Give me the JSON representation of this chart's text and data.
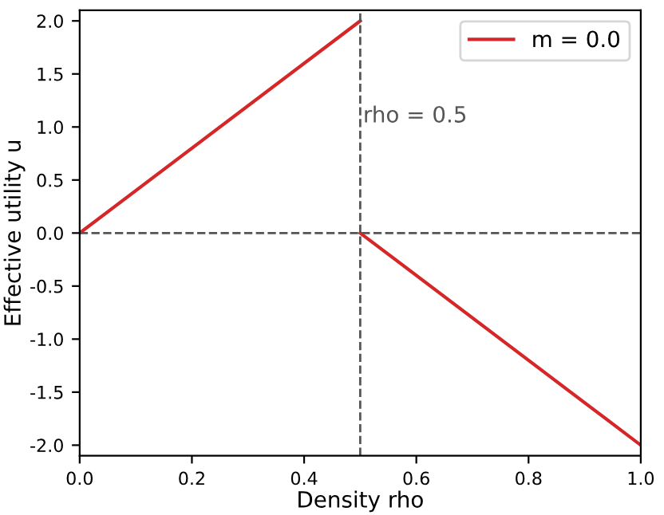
{
  "chart_data": {
    "type": "line",
    "xlabel": "Density rho",
    "ylabel": "Effective utility u",
    "series": [
      {
        "name": "m = 0.0",
        "color": "#d62728",
        "x": [
          0,
          0.5
        ],
        "values": [
          0,
          2
        ]
      },
      {
        "color": "#d62728",
        "x": [
          0.5,
          1
        ],
        "values": [
          0,
          -2
        ]
      }
    ],
    "xlim": [
      0,
      1
    ],
    "ylim": [
      -2.1,
      2.1
    ],
    "xticks": [
      {
        "value": 0,
        "label": "0.0"
      },
      0.2,
      0.4,
      0.6,
      0.8,
      {
        "value": 1,
        "label": "1.0"
      }
    ],
    "yticks": [
      {
        "value": -2,
        "label": "-2.0"
      },
      -1.5,
      {
        "value": -1,
        "label": "-1.0"
      },
      -0.5,
      {
        "value": 0,
        "label": "0.0"
      },
      0.5,
      {
        "value": 1,
        "label": "1.0"
      },
      1.5,
      {
        "value": 2,
        "label": "2.0"
      }
    ],
    "ref_lines": [
      {
        "axis": "y",
        "value": 0,
        "color": "#555555",
        "line_style": "dashed"
      },
      {
        "axis": "x",
        "value": 0.5,
        "label": "rho = 0.5",
        "color": "#555555",
        "line_style": "dashed"
      }
    ],
    "legend": "top right",
    "grid": false,
    "marker": "none",
    "line_style": "solid"
  }
}
